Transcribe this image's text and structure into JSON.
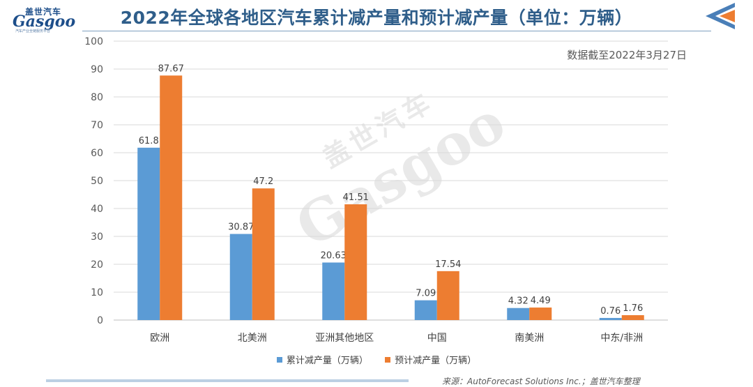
{
  "header": {
    "logo_cn": "盖世汽车",
    "logo_en": "Gasgoo",
    "logo_sub": "汽车产业全链服务平台",
    "title": "2022年全球各地区汽车累计减产量和预计减产量（单位：万辆）",
    "date_note": "数据截至2022年3月27日"
  },
  "watermark": {
    "cn": "盖世汽车",
    "en": "Gasgoo"
  },
  "colors": {
    "series1": "#5b9bd5",
    "series2": "#ed7d31",
    "title": "#2f5e8a",
    "arrow_blue": "#4a7fb8",
    "arrow_orange": "#ed7d31"
  },
  "chart_data": {
    "type": "bar",
    "categories": [
      "欧洲",
      "北美洲",
      "亚洲其他地区",
      "中国",
      "南美洲",
      "中东/非洲"
    ],
    "series": [
      {
        "name": "累计减产量（万辆）",
        "values": [
          61.8,
          30.87,
          20.63,
          7.09,
          4.32,
          0.76
        ],
        "labels": [
          "61.8",
          "30.87",
          "20.63",
          "7.09",
          "4.32",
          "0.76"
        ]
      },
      {
        "name": "预计减产量（万辆）",
        "values": [
          87.67,
          47.2,
          41.51,
          17.54,
          4.49,
          1.76
        ],
        "labels": [
          "87.67",
          "47.2",
          "41.51",
          "17.54",
          "4.49",
          "1.76"
        ]
      }
    ],
    "ylim": [
      0,
      100
    ],
    "yticks": [
      0,
      10,
      20,
      30,
      40,
      50,
      60,
      70,
      80,
      90,
      100
    ],
    "grid": true,
    "legend": "bottom"
  },
  "source": "来源：AutoForecast Solutions Inc.；盖世汽车整理"
}
